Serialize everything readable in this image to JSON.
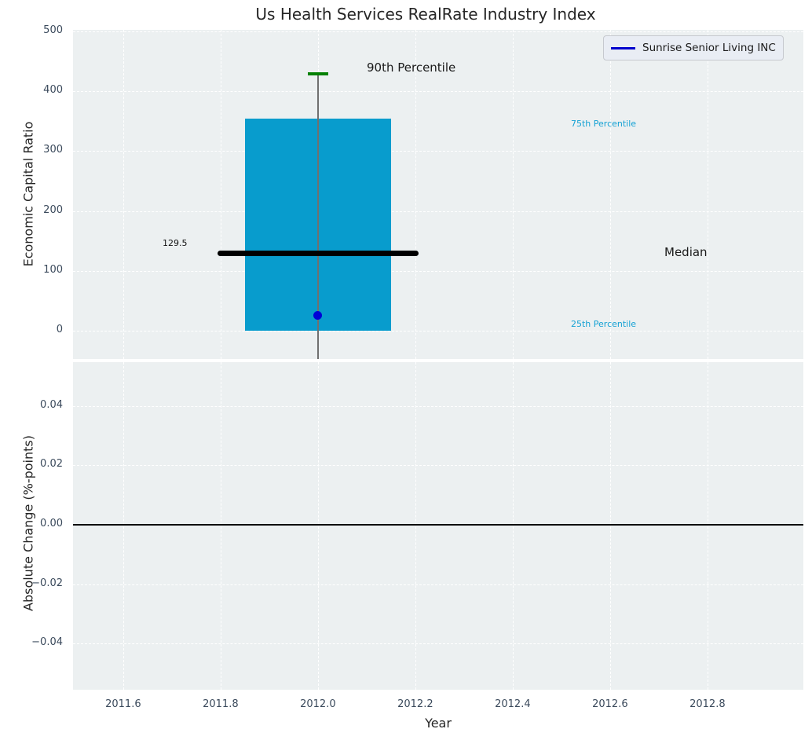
{
  "title": "Us Health Services RealRate Industry Index",
  "legend": {
    "items": [
      {
        "label": "Sunrise Senior Living INC",
        "color": "#0000cd"
      }
    ]
  },
  "axes": {
    "top": {
      "ylabel": "Economic Capital Ratio",
      "yticks": [
        "500",
        "400",
        "300",
        "200",
        "100",
        "0"
      ]
    },
    "bottom": {
      "ylabel": "Absolute Change (%-points)",
      "yticks": [
        "0.04",
        "0.02",
        "0.00",
        "−0.02",
        "−0.04"
      ]
    },
    "xlabel": "Year",
    "xticks": [
      "2011.6",
      "2011.8",
      "2012.0",
      "2012.2",
      "2012.4",
      "2012.6",
      "2012.8"
    ]
  },
  "annotations": {
    "p90": "90th Percentile",
    "p75": "75th Percentile",
    "median": "Median",
    "p25": "25th Percentile",
    "median_value": "129.5"
  },
  "colors": {
    "box_fill": "#089ccd",
    "percentile_label": "#14a1d4",
    "median_line": "#000000",
    "whisker": "#707070",
    "cap_90th": "#038003",
    "company_marker": "#0000d6",
    "legend_line": "#0000cd",
    "axes_background": "#ecf0f1",
    "gridline": "#ffffff",
    "tick_label": "#3b4a5c"
  },
  "chart_data": {
    "type": "bar",
    "subtype": "percentile-box-with-marker",
    "title": "Us Health Services RealRate Industry Index",
    "xlabel": "Year",
    "xlim": [
      2011.497,
      2012.997
    ],
    "xticks": [
      2011.6,
      2011.8,
      2012.0,
      2012.2,
      2012.4,
      2012.6,
      2012.8
    ],
    "grid": true,
    "legend_position": "upper right",
    "top_panel": {
      "ylabel": "Economic Capital Ratio",
      "ylim": [
        -47.2,
        502.6
      ],
      "yticks": [
        500,
        400,
        300,
        200,
        100,
        0
      ],
      "box": {
        "x_center": 2012.0,
        "box_x_range": [
          2011.85,
          2012.15
        ],
        "median_x_range": [
          2011.8,
          2012.2
        ],
        "percentile_25": 0,
        "median": 129.5,
        "percentile_75": 354,
        "percentile_90": 429,
        "whisker_extends_below_axis": true
      },
      "company_point": {
        "name": "Sunrise Senior Living INC",
        "x": 2012.0,
        "y": 25
      }
    },
    "bottom_panel": {
      "ylabel": "Absolute Change (%-points)",
      "ylim": [
        -0.0556,
        0.0548
      ],
      "yticks": [
        0.04,
        0.02,
        0.0,
        -0.02,
        -0.04
      ],
      "zero_line": 0,
      "series": []
    }
  }
}
